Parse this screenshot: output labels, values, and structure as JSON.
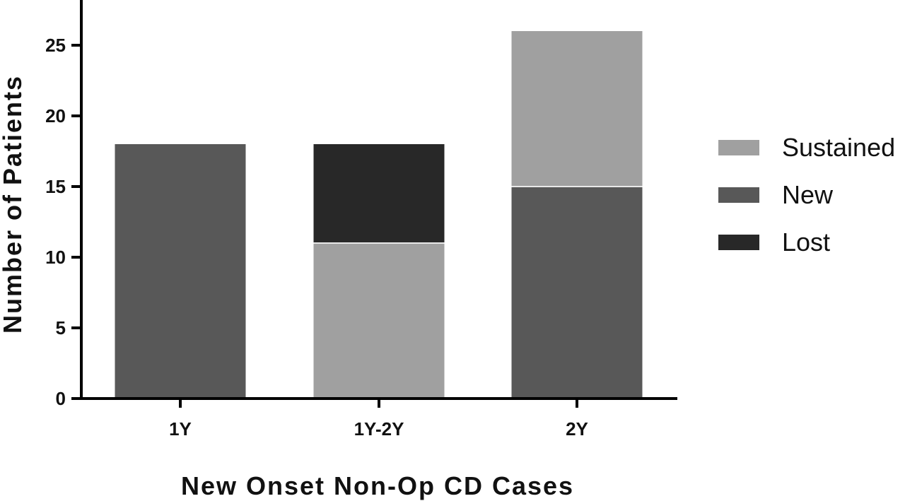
{
  "chart_data": {
    "type": "bar",
    "stacked": true,
    "categories": [
      "1Y",
      "1Y-2Y",
      "2Y"
    ],
    "series": [
      {
        "name": "Sustained",
        "values": [
          0,
          11,
          11
        ],
        "color": "#a0a0a0"
      },
      {
        "name": "New",
        "values": [
          18,
          0,
          15
        ],
        "color": "#585858"
      },
      {
        "name": "Lost",
        "values": [
          0,
          7,
          0
        ],
        "color": "#282828"
      }
    ],
    "stack_order": {
      "1Y": [
        "New"
      ],
      "1Y-2Y": [
        "Sustained",
        "Lost"
      ],
      "2Y": [
        "New",
        "Sustained"
      ]
    },
    "xlabel": "New Onset Non-Op CD Cases",
    "ylabel": "Number of Patients",
    "ylim": [
      0,
      28
    ],
    "yticks": [
      0,
      5,
      10,
      15,
      20,
      25
    ],
    "grid": false,
    "legend_position": "right"
  }
}
